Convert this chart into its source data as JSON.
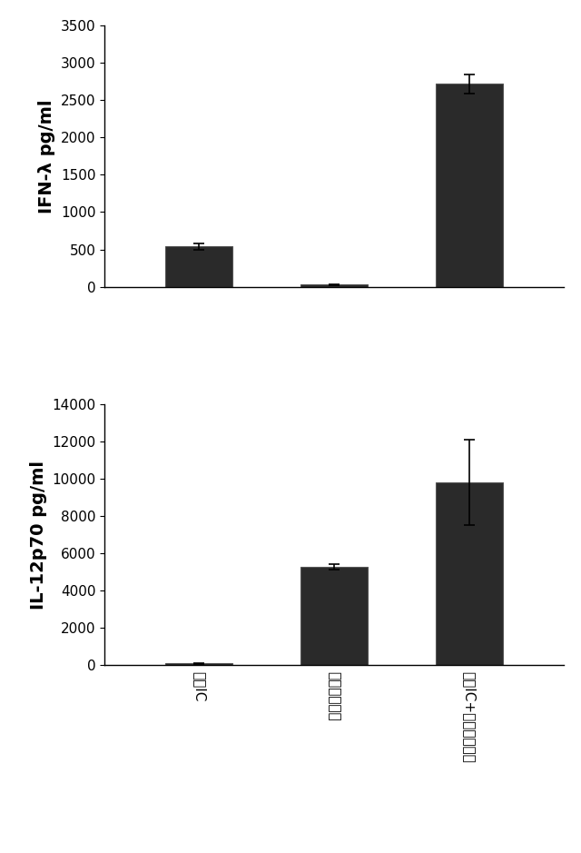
{
  "top_chart": {
    "ylabel": "IFN-λ pg/ml",
    "categories": [
      "ポリIC",
      "プロフィリン",
      "ポリIC+プロフィリン"
    ],
    "values": [
      540,
      30,
      2720
    ],
    "errors": [
      40,
      5,
      130
    ],
    "ylim": [
      0,
      3500
    ],
    "yticks": [
      0,
      500,
      1000,
      1500,
      2000,
      2500,
      3000,
      3500
    ]
  },
  "bottom_chart": {
    "ylabel": "IL-12p70 pg/ml",
    "categories": [
      "ポリIC",
      "プロフィリン",
      "ポリIC+プロフィリン"
    ],
    "values": [
      100,
      5300,
      9800
    ],
    "errors": [
      20,
      150,
      2300
    ],
    "ylim": [
      0,
      14000
    ],
    "yticks": [
      0,
      2000,
      4000,
      6000,
      8000,
      10000,
      12000,
      14000
    ]
  },
  "figure_bg": "#ffffff",
  "bar_color": "#2a2a2a",
  "bar_edgecolor": "#555555",
  "bar_width": 0.5,
  "capsize": 4,
  "ylabel_fontsize": 14,
  "tick_fontsize": 11,
  "xtick_fontsize": 11
}
